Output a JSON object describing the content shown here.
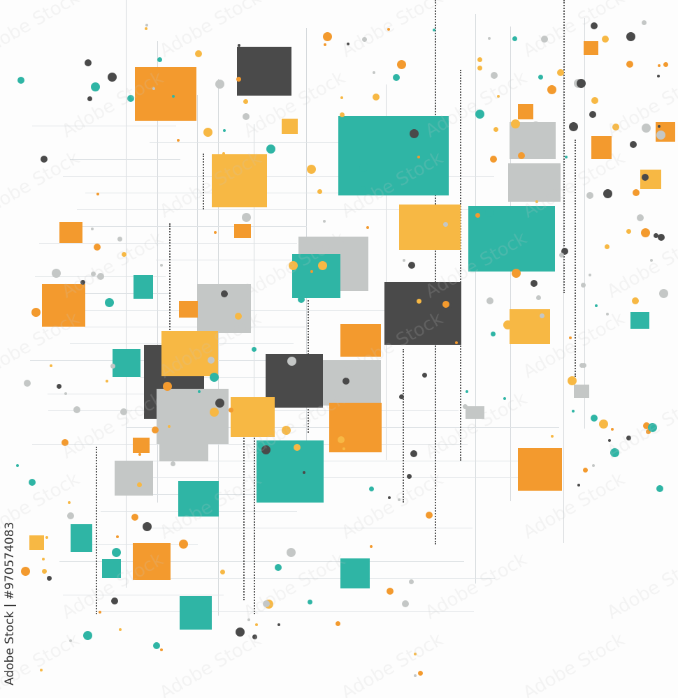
{
  "palette": {
    "orange": "#F39A2E",
    "yellow": "#F7B844",
    "teal": "#2FB5A5",
    "dark": "#4A4A4A",
    "gray": "#C4C7C6"
  },
  "credit": "Adobe Stock | #970574083",
  "watermark": "Adobe Stock"
}
